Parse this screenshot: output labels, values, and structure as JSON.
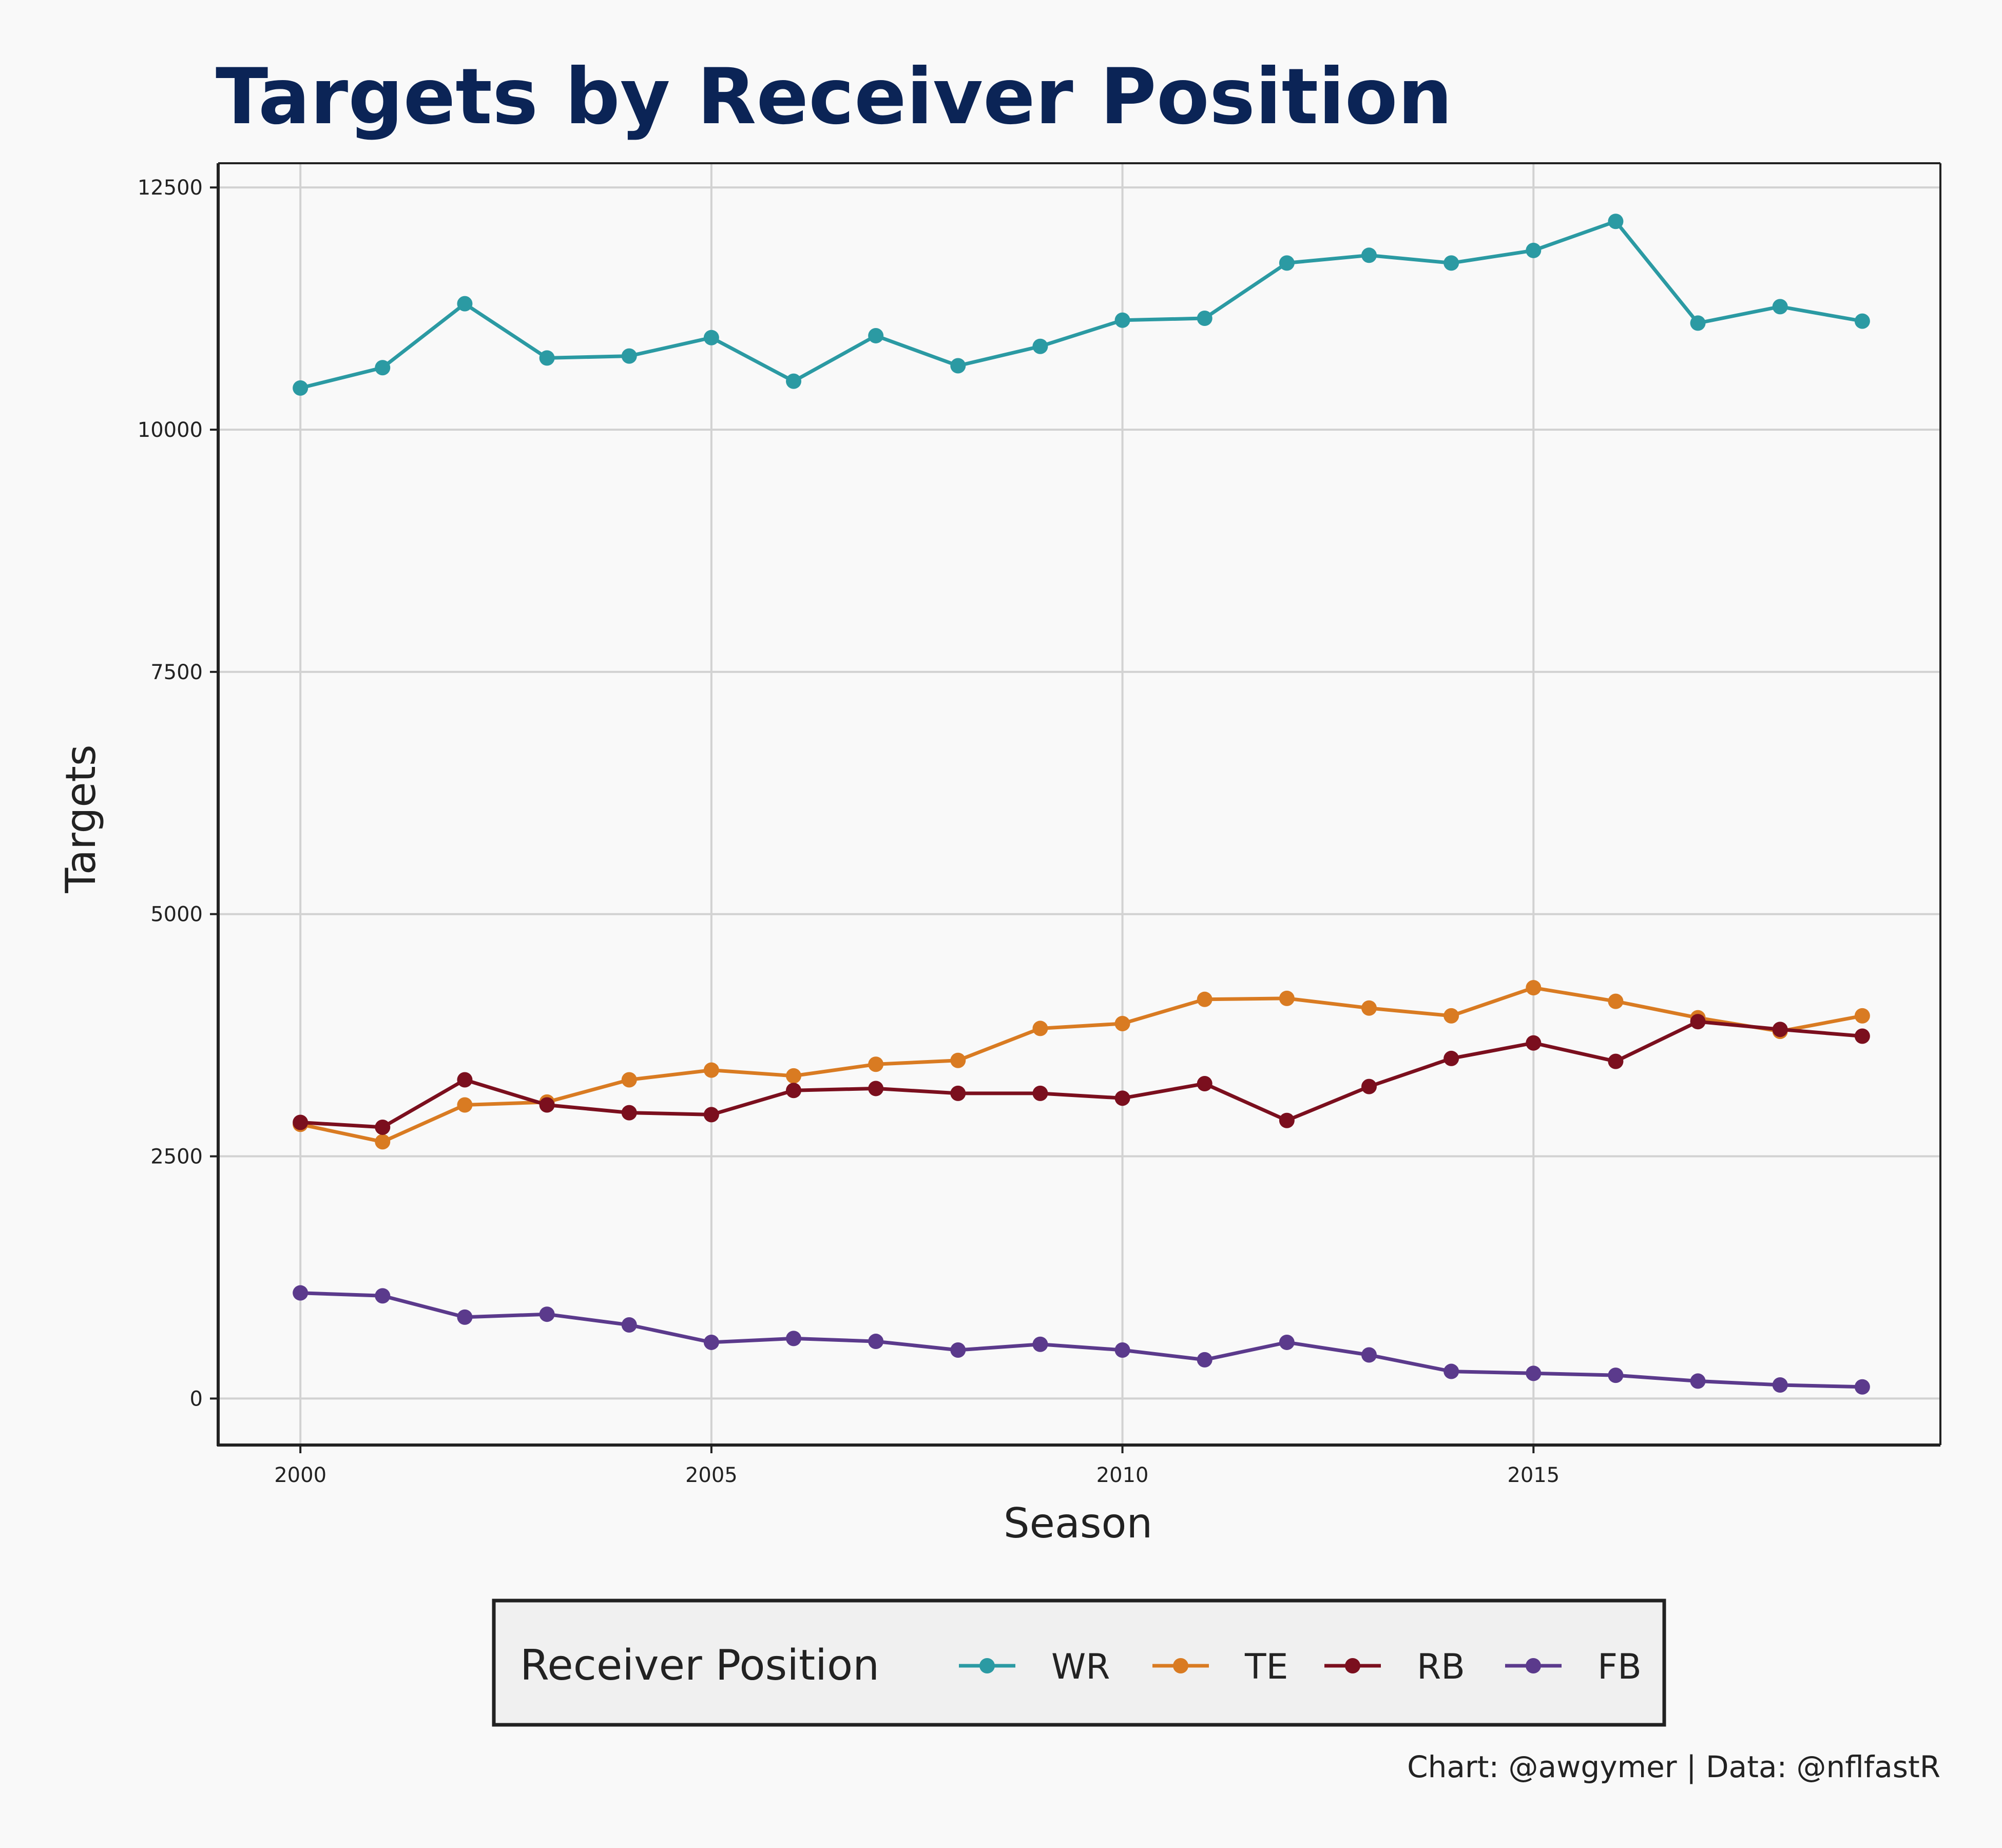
{
  "chart_data": {
    "type": "line",
    "title": "Targets by Receiver Position",
    "xlabel": "Season",
    "ylabel": "Targets",
    "caption": "Chart: @awgymer | Data: @nflfastR",
    "xlim": [
      1999,
      2019.95
    ],
    "ylim": [
      -480,
      12750
    ],
    "x_ticks": [
      2000,
      2005,
      2010,
      2015
    ],
    "y_ticks": [
      0,
      2500,
      5000,
      7500,
      10000,
      12500
    ],
    "grid": true,
    "legend_position": "bottom",
    "legend_title": "Receiver Position",
    "x": [
      2000,
      2001,
      2002,
      2003,
      2004,
      2005,
      2006,
      2007,
      2008,
      2009,
      2010,
      2011,
      2012,
      2013,
      2014,
      2015,
      2016,
      2017,
      2018,
      2019
    ],
    "series": [
      {
        "name": "WR",
        "color": "#2b9aa3",
        "values": [
          10430,
          10640,
          11300,
          10740,
          10760,
          10950,
          10500,
          10970,
          10660,
          10860,
          11130,
          11150,
          11720,
          11800,
          11720,
          11850,
          12150,
          11100,
          11270,
          11120
        ]
      },
      {
        "name": "TE",
        "color": "#d97b22",
        "values": [
          2830,
          2650,
          3030,
          3060,
          3290,
          3390,
          3330,
          3450,
          3490,
          3820,
          3870,
          4120,
          4130,
          4030,
          3950,
          4240,
          4100,
          3930,
          3790,
          3950
        ]
      },
      {
        "name": "RB",
        "color": "#7b0f1e",
        "values": [
          2850,
          2800,
          3290,
          3030,
          2950,
          2930,
          3180,
          3200,
          3150,
          3150,
          3100,
          3250,
          2870,
          3220,
          3510,
          3670,
          3480,
          3890,
          3810,
          3740
        ]
      },
      {
        "name": "FB",
        "color": "#5b3a8c",
        "values": [
          1090,
          1060,
          840,
          870,
          760,
          580,
          620,
          590,
          500,
          560,
          500,
          400,
          580,
          450,
          280,
          260,
          240,
          180,
          140,
          120
        ]
      }
    ]
  }
}
